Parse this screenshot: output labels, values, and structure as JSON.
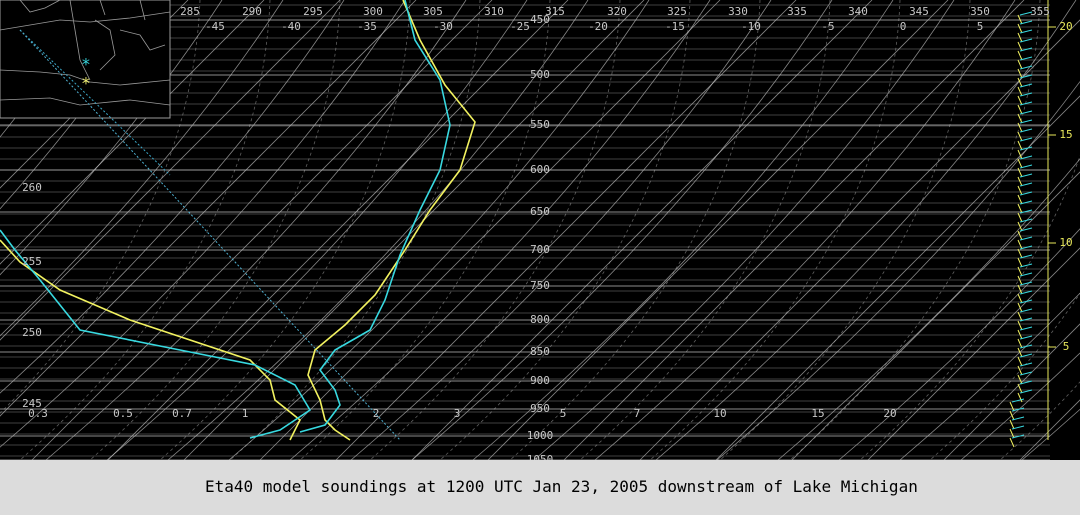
{
  "caption": "Eta40 model soundings at 1200 UTC Jan 23, 2005 downstream of Lake Michigan",
  "pressure_labels": [
    450,
    500,
    550,
    600,
    650,
    700,
    750,
    800,
    850,
    900,
    950,
    1000,
    1050
  ],
  "theta_labels": [
    285,
    290,
    295,
    300,
    305,
    310,
    315,
    320,
    325,
    330,
    335,
    340,
    345,
    350,
    355
  ],
  "temperature_labels": [
    -45,
    -40,
    -35,
    -30,
    -25,
    -20,
    -15,
    -10,
    -5,
    0,
    5
  ],
  "mixing_ratio_labels": [
    0.3,
    0.5,
    0.7,
    1,
    2,
    3,
    5,
    7,
    10,
    15,
    20
  ],
  "wetbulb_labels": [
    260,
    255,
    250,
    245
  ],
  "height_labels": [
    20,
    15,
    10,
    5
  ]
}
